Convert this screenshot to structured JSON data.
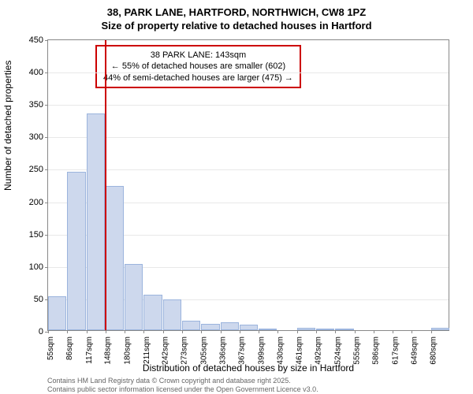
{
  "chart": {
    "type": "histogram",
    "title_line1": "38, PARK LANE, HARTFORD, NORTHWICH, CW8 1PZ",
    "title_line2": "Size of property relative to detached houses in Hartford",
    "y_axis_label": "Number of detached properties",
    "x_axis_label": "Distribution of detached houses by size in Hartford",
    "ylim": [
      0,
      450
    ],
    "ytick_step": 50,
    "y_ticks": [
      0,
      50,
      100,
      150,
      200,
      250,
      300,
      350,
      400,
      450
    ],
    "x_ticks": [
      "55sqm",
      "86sqm",
      "117sqm",
      "148sqm",
      "180sqm",
      "211sqm",
      "242sqm",
      "273sqm",
      "305sqm",
      "336sqm",
      "367sqm",
      "399sqm",
      "430sqm",
      "461sqm",
      "492sqm",
      "524sqm",
      "555sqm",
      "586sqm",
      "617sqm",
      "649sqm",
      "680sqm"
    ],
    "bars": [
      52,
      245,
      335,
      222,
      102,
      55,
      48,
      15,
      10,
      12,
      8,
      3,
      0,
      4,
      2,
      2,
      0,
      0,
      0,
      0,
      4
    ],
    "bar_color": "#cdd8ed",
    "bar_border_color": "#9bb4dd",
    "marker_position": 143,
    "marker_color": "#cc0000",
    "annotation": {
      "line1": "38 PARK LANE: 143sqm",
      "line2": "← 55% of detached houses are smaller (602)",
      "line3": "44% of semi-detached houses are larger (475) →"
    },
    "x_range": [
      55,
      680
    ],
    "background_color": "#ffffff",
    "grid_color": "#e8e8e8",
    "footer_line1": "Contains HM Land Registry data © Crown copyright and database right 2025.",
    "footer_line2": "Contains public sector information licensed under the Open Government Licence v3.0."
  }
}
